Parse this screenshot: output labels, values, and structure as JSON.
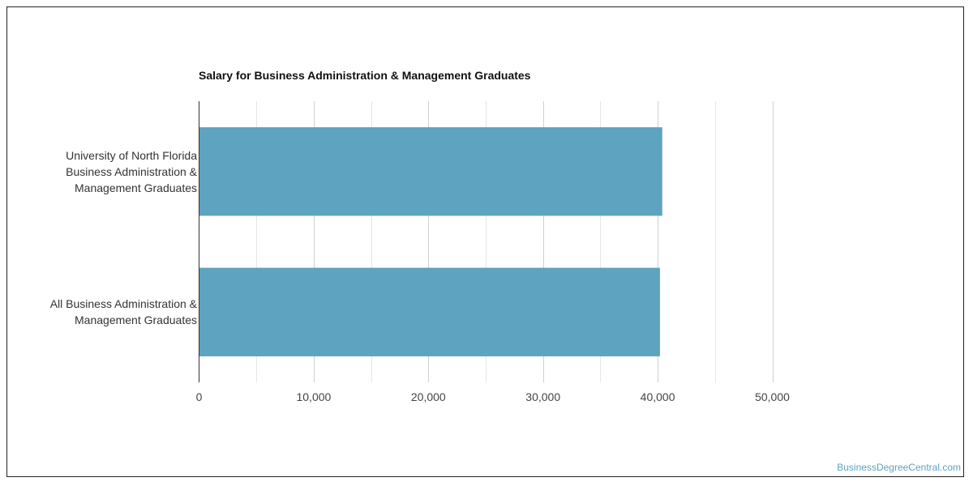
{
  "chart_data": {
    "type": "bar",
    "orientation": "horizontal",
    "title": "Salary for Business Administration & Management Graduates",
    "categories": [
      [
        "University of North Florida",
        "Business Administration &",
        "Management Graduates"
      ],
      [
        "All Business Administration &",
        "Management Graduates"
      ]
    ],
    "values": [
      40400,
      40200
    ],
    "xlim": [
      0,
      50000
    ],
    "xticks": [
      "0",
      "10,000",
      "20,000",
      "30,000",
      "40,000",
      "50,000"
    ],
    "xtick_values": [
      0,
      10000,
      20000,
      30000,
      40000,
      50000
    ],
    "grid": true,
    "bar_color": "#5ea3bf",
    "grid_color": "#d9d9d9"
  },
  "watermark": "BusinessDegreeCentral.com"
}
